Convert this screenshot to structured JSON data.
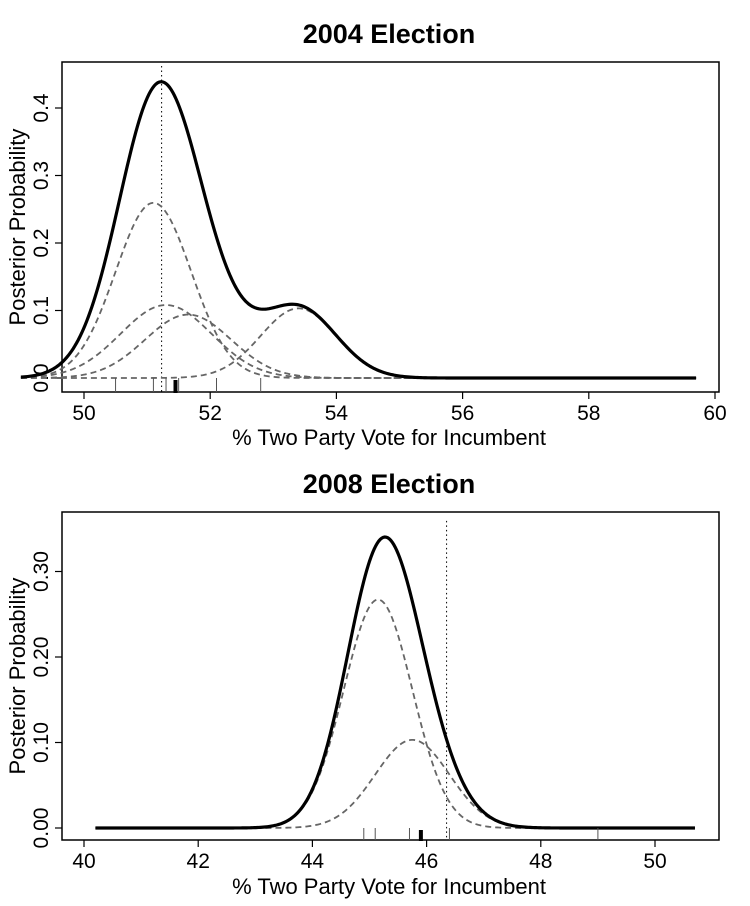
{
  "chart_data": [
    {
      "type": "line",
      "title": "2004 Election",
      "xlabel": "% Two Party Vote for Incumbent",
      "ylabel": "Posterior Probability",
      "xlim": [
        49,
        60
      ],
      "ylim": [
        0,
        0.45
      ],
      "x_ticks": [
        "50",
        "52",
        "54",
        "56",
        "58",
        "60"
      ],
      "y_ticks": [
        "0.0",
        "0.1",
        "0.2",
        "0.3",
        "0.4"
      ],
      "curve_x_range": [
        49,
        59.7
      ],
      "vertical_line_x": 51.23,
      "rug_ticks_x": [
        50.5,
        51.1,
        51.3,
        51.5,
        52.1,
        52.8
      ],
      "rug_mean_x": 51.45,
      "series": [
        {
          "style": "solid-mixture",
          "mean": null,
          "sd": null,
          "weight": null
        },
        {
          "style": "dashed-component",
          "mean": 51.1,
          "sd": 0.6,
          "weight": 0.39
        },
        {
          "style": "dashed-component",
          "mean": 51.3,
          "sd": 0.72,
          "weight": 0.195
        },
        {
          "style": "dashed-component",
          "mean": 51.65,
          "sd": 0.68,
          "weight": 0.16
        },
        {
          "style": "dashed-component",
          "mean": 53.4,
          "sd": 0.6,
          "weight": 0.155
        }
      ]
    },
    {
      "type": "line",
      "title": "2008 Election",
      "xlabel": "% Two Party Vote for Incumbent",
      "ylabel": "Posterior Probability",
      "xlim": [
        40,
        50.7
      ],
      "ylim": [
        0,
        0.35
      ],
      "x_ticks": [
        "40",
        "42",
        "44",
        "46",
        "48",
        "50"
      ],
      "y_ticks": [
        "0.00",
        "0.10",
        "0.20",
        "0.30"
      ],
      "curve_x_range": [
        40.2,
        50.7
      ],
      "vertical_line_x": 46.35,
      "rug_ticks_x": [
        44.9,
        45.1,
        45.7,
        46.4,
        49.0
      ],
      "rug_mean_x": 45.9,
      "series": [
        {
          "style": "solid-mixture",
          "mean": null,
          "sd": null,
          "weight": null
        },
        {
          "style": "dashed-component",
          "mean": 45.15,
          "sd": 0.6,
          "weight": 0.402
        },
        {
          "style": "dashed-component",
          "mean": 45.75,
          "sd": 0.65,
          "weight": 0.168
        }
      ]
    }
  ]
}
